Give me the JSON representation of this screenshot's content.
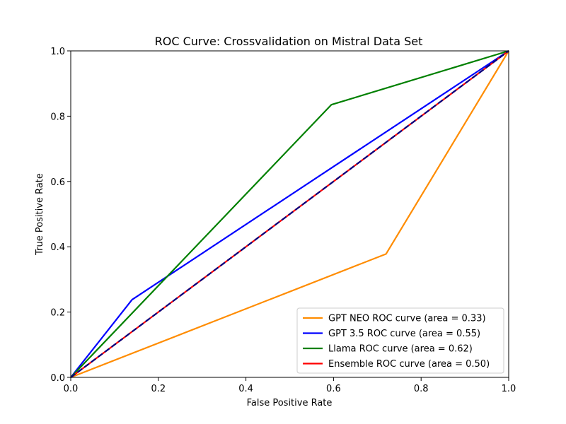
{
  "chart_data": {
    "type": "line",
    "title": "ROC Curve: Crossvalidation on Mistral Data Set",
    "xlabel": "False Positive Rate",
    "ylabel": "True Positive Rate",
    "xlim": [
      0.0,
      1.0
    ],
    "ylim": [
      0.0,
      1.0
    ],
    "xticks": [
      "0.0",
      "0.2",
      "0.4",
      "0.6",
      "0.8",
      "1.0"
    ],
    "yticks": [
      "0.0",
      "0.2",
      "0.4",
      "0.6",
      "0.8",
      "1.0"
    ],
    "grid": false,
    "legend_position": "lower-right",
    "series": [
      {
        "name": "GPT NEO ROC curve (area = 0.33)",
        "color": "#ff8c00",
        "x": [
          0.0,
          0.72,
          1.0
        ],
        "y": [
          0.0,
          0.378,
          1.0
        ]
      },
      {
        "name": "GPT 3.5 ROC curve (area = 0.55)",
        "color": "#0000ff",
        "x": [
          0.0,
          0.14,
          1.0
        ],
        "y": [
          0.0,
          0.238,
          1.0
        ]
      },
      {
        "name": "Llama ROC curve (area = 0.62)",
        "color": "#008000",
        "x": [
          0.0,
          0.595,
          1.0
        ],
        "y": [
          0.0,
          0.835,
          1.0
        ]
      },
      {
        "name": "Ensemble ROC curve (area = 0.50)",
        "color": "#ff0000",
        "x": [
          0.0,
          1.0
        ],
        "y": [
          0.0,
          1.0
        ]
      }
    ],
    "reference_line": {
      "color": "#000080",
      "style": "dashed",
      "x": [
        0.0,
        1.0
      ],
      "y": [
        0.0,
        1.0
      ]
    }
  }
}
